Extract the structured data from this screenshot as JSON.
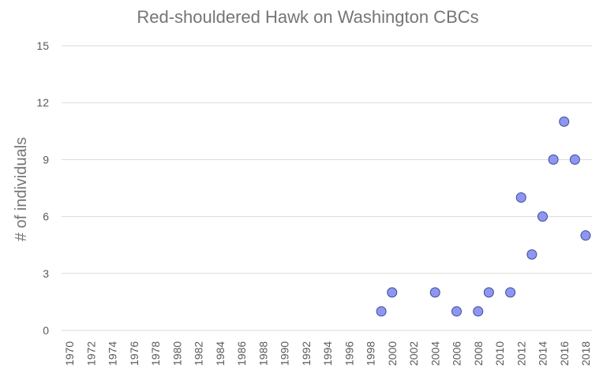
{
  "chart_data": {
    "type": "scatter",
    "title": "Red-shouldered Hawk on Washington CBCs",
    "xlabel": "",
    "ylabel": "# of individuals",
    "xlim": [
      1970,
      2018
    ],
    "ylim": [
      0,
      15
    ],
    "x_ticks": [
      "1970",
      "1972",
      "1974",
      "1976",
      "1978",
      "1980",
      "1982",
      "1984",
      "1986",
      "1988",
      "1990",
      "1992",
      "1994",
      "1996",
      "1998",
      "2000",
      "2002",
      "2004",
      "2006",
      "2008",
      "2010",
      "2012",
      "2014",
      "2016",
      "2018"
    ],
    "y_ticks": [
      "0",
      "3",
      "6",
      "9",
      "12",
      "15"
    ],
    "grid": "horizontal",
    "marker_fill": "#8f96f0",
    "marker_stroke": "#3b4a9b",
    "series": [
      {
        "name": "Red-shouldered Hawk",
        "x": [
          1999,
          2000,
          2004,
          2006,
          2008,
          2009,
          2011,
          2012,
          2013,
          2014,
          2015,
          2016,
          2017,
          2018
        ],
        "y": [
          1,
          2,
          2,
          1,
          1,
          2,
          2,
          7,
          4,
          6,
          9,
          11,
          9,
          5
        ]
      }
    ]
  }
}
